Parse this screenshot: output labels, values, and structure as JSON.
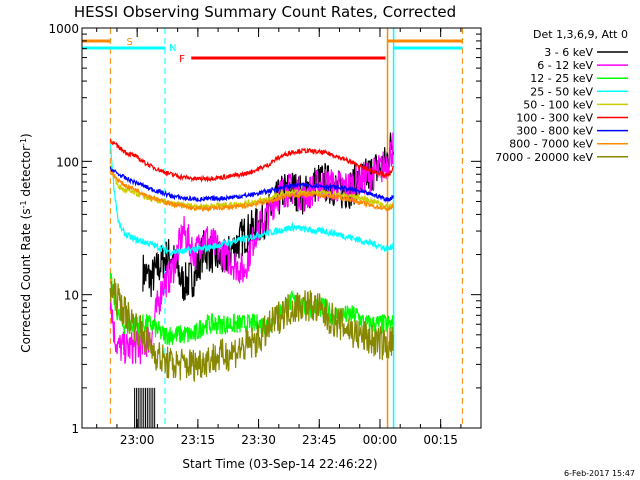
{
  "chart_data": {
    "type": "line",
    "title": "HESSI Observing Summary Count Rates, Corrected",
    "xlabel": "Start Time (03-Sep-14 22:46:22)",
    "ylabel": "Corrected Count Rate (s⁻¹ detector⁻¹)",
    "ylabel_parts": {
      "pre": "Corrected Count Rate (s",
      "sup1": "-1",
      "mid": " detector",
      "sup2": "-1",
      "post": ")"
    },
    "y_scale": "log",
    "ylim": [
      1,
      1000
    ],
    "xlim": [
      "22:46:22",
      "00:25:00"
    ],
    "x_ticks": [
      "23:00",
      "23:15",
      "23:30",
      "23:45",
      "00:00",
      "00:15"
    ],
    "y_ticks": [
      "1",
      "10",
      "100",
      "1000"
    ],
    "grid": false,
    "legend_position": "right",
    "legend_title": "Det 1,3,6,9, Att 0",
    "footer_date": "6-Feb-2017 15:47",
    "x_minutes": [
      7,
      8,
      9,
      10,
      11,
      13,
      15,
      17,
      20,
      22,
      25,
      28,
      30,
      35,
      40,
      43,
      46,
      48,
      50,
      52,
      55,
      58,
      60,
      62,
      64,
      66,
      68,
      70,
      72,
      74,
      75,
      76,
      77
    ],
    "series": [
      {
        "name": "3 - 6 keV",
        "color": "#000000",
        "start_minute": 13,
        "values": [
          null,
          null,
          null,
          null,
          null,
          null,
          15,
          13,
          18,
          20,
          12,
          14,
          22,
          18,
          28,
          32,
          40,
          50,
          60,
          62,
          55,
          70,
          70,
          65,
          60,
          62,
          70,
          75,
          85,
          90,
          95,
          120,
          150
        ]
      },
      {
        "name": "6 - 12 keV",
        "color": "#ff00ff",
        "values": [
          10,
          5,
          4,
          4,
          4,
          4,
          4,
          5,
          12,
          14,
          30,
          20,
          28,
          20,
          15,
          30,
          40,
          55,
          60,
          62,
          55,
          65,
          68,
          66,
          64,
          65,
          70,
          75,
          80,
          88,
          95,
          110,
          130
        ]
      },
      {
        "name": "12 - 25 keV",
        "color": "#00ff00",
        "values": [
          13,
          9,
          7,
          6,
          6,
          6,
          6,
          6,
          5,
          5,
          5,
          5,
          6,
          6,
          6,
          6,
          6,
          7,
          8,
          9,
          8,
          8,
          8,
          7,
          7,
          7,
          7,
          6,
          6,
          6,
          6,
          6,
          6
        ]
      },
      {
        "name": "25 - 50 keV",
        "color": "#00ffff",
        "values": [
          135,
          60,
          35,
          30,
          28,
          26,
          25,
          24,
          22,
          21,
          21,
          22,
          22,
          24,
          26,
          28,
          29,
          30,
          31,
          32,
          31,
          30,
          30,
          29,
          28,
          27,
          26,
          25,
          24,
          23,
          22,
          22,
          24
        ]
      },
      {
        "name": "50 - 100 keV",
        "color": "#cccc00",
        "values": [
          95,
          75,
          65,
          62,
          60,
          58,
          55,
          52,
          50,
          48,
          47,
          46,
          46,
          47,
          48,
          50,
          52,
          55,
          57,
          58,
          58,
          58,
          58,
          57,
          56,
          55,
          54,
          52,
          50,
          48,
          46,
          46,
          48
        ]
      },
      {
        "name": "100 - 300 keV",
        "color": "#ff0000",
        "values": [
          145,
          135,
          128,
          122,
          116,
          110,
          100,
          92,
          84,
          80,
          76,
          74,
          74,
          76,
          80,
          86,
          94,
          104,
          112,
          118,
          120,
          118,
          116,
          112,
          106,
          100,
          94,
          88,
          84,
          80,
          78,
          80,
          90
        ]
      },
      {
        "name": "300 - 800 keV",
        "color": "#0000ff",
        "values": [
          88,
          84,
          80,
          77,
          74,
          70,
          66,
          62,
          58,
          55,
          53,
          52,
          52,
          53,
          55,
          57,
          60,
          62,
          64,
          66,
          66,
          66,
          65,
          64,
          63,
          62,
          60,
          58,
          56,
          54,
          52,
          52,
          55
        ]
      },
      {
        "name": "800 - 7000 keV",
        "color": "#ff8800",
        "values": [
          82,
          78,
          72,
          68,
          65,
          62,
          58,
          54,
          50,
          48,
          46,
          44,
          44,
          45,
          46,
          48,
          50,
          52,
          54,
          56,
          56,
          56,
          55,
          54,
          53,
          52,
          50,
          48,
          46,
          45,
          44,
          44,
          46
        ]
      },
      {
        "name": "7000 - 20000 keV",
        "color": "#888800",
        "values": [
          11,
          10,
          9,
          8,
          7,
          6,
          5,
          4,
          3.2,
          3,
          3,
          3,
          3.2,
          3.5,
          4,
          4.5,
          5.5,
          6.5,
          7.5,
          8,
          8.5,
          8,
          7,
          6.5,
          6,
          5.5,
          5,
          4.8,
          4.5,
          4.3,
          4.2,
          4.3,
          4.6
        ]
      }
    ],
    "annotations": {
      "S": {
        "label": "S",
        "color": "#ff8800"
      },
      "N": {
        "label": "N",
        "color": "#00ffff"
      },
      "F": {
        "label": "F",
        "color": "#ff0000"
      }
    }
  }
}
